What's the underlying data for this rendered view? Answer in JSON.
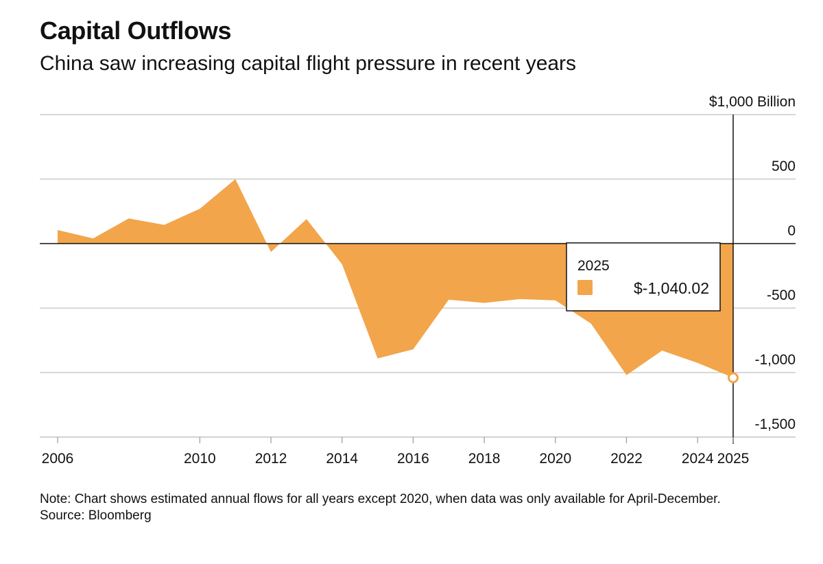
{
  "header": {
    "title": "Capital Outflows",
    "subtitle": "China saw increasing capital flight pressure in recent years"
  },
  "chart_data": {
    "type": "area",
    "title": "Capital Outflows",
    "subtitle": "China saw increasing capital flight pressure in recent years",
    "unit_label": "$1,000 Billion",
    "x": [
      2006,
      2007,
      2008,
      2009,
      2010,
      2011,
      2012,
      2013,
      2014,
      2015,
      2016,
      2017,
      2018,
      2019,
      2020,
      2021,
      2022,
      2023,
      2024,
      2025
    ],
    "values": [
      105,
      40,
      195,
      145,
      270,
      500,
      -65,
      190,
      -160,
      -890,
      -820,
      -435,
      -460,
      -430,
      -440,
      -620,
      -1020,
      -830,
      -925,
      -1040.02
    ],
    "ylim": [
      -1500,
      1000
    ],
    "yticks": [
      1000,
      500,
      0,
      -500,
      -1000,
      -1500
    ],
    "ytick_labels": [
      "$1,000 Billion",
      "500",
      "0",
      "-500",
      "-1,000",
      "-1,500"
    ],
    "xticks": [
      2006,
      2010,
      2012,
      2014,
      2016,
      2018,
      2020,
      2022,
      2024,
      2025
    ],
    "xtick_labels": [
      "2006",
      "2010",
      "2012",
      "2014",
      "2016",
      "2018",
      "2020",
      "2022",
      "2024",
      "2025"
    ],
    "grid": true,
    "color": "#F2A54A",
    "tooltip": {
      "year": "2025",
      "value_label": "$-1,040.02"
    }
  },
  "footer": {
    "note": "Note: Chart shows estimated annual flows for all years except 2020, when data was only available for April-December.",
    "source": "Source: Bloomberg"
  }
}
